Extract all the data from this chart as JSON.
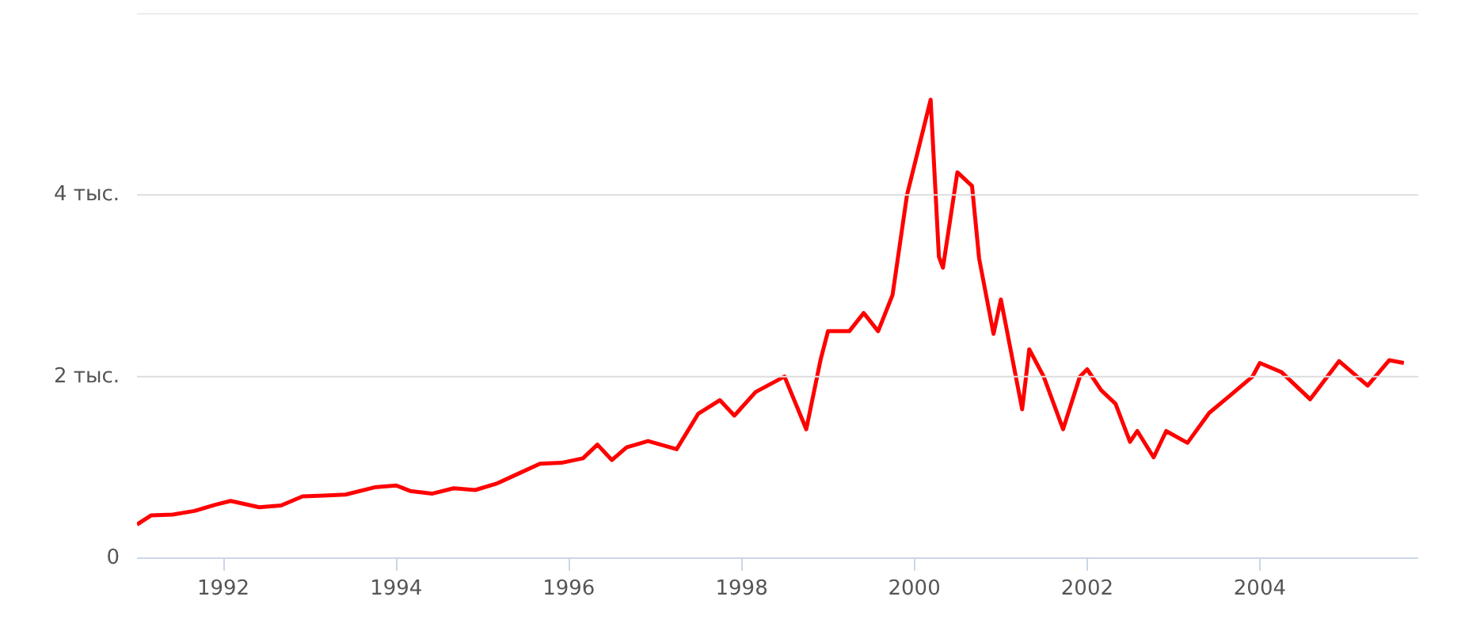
{
  "chart_data": {
    "type": "line",
    "x": [
      "1991-01",
      "1991-03",
      "1991-06",
      "1991-09",
      "1991-12",
      "1992-02",
      "1992-06",
      "1992-09",
      "1992-12",
      "1993-03",
      "1993-06",
      "1993-10",
      "1994-01",
      "1994-03",
      "1994-06",
      "1994-09",
      "1994-12",
      "1995-03",
      "1995-06",
      "1995-09",
      "1995-12",
      "1996-03",
      "1996-05",
      "1996-07",
      "1996-09",
      "1996-12",
      "1997-04",
      "1997-07",
      "1997-10",
      "1997-12",
      "1998-03",
      "1998-07",
      "1998-10",
      "1998-12",
      "1999-01",
      "1999-04",
      "1999-06",
      "1999-08",
      "1999-10",
      "1999-12",
      "2000-03-10",
      "2000-04-14",
      "2000-05",
      "2000-07",
      "2000-09",
      "2000-10",
      "2000-12",
      "2001-01",
      "2001-04",
      "2001-05",
      "2001-07",
      "2001-09-21",
      "2001-12",
      "2002-01",
      "2002-03",
      "2002-05",
      "2002-07",
      "2002-08",
      "2002-10-09",
      "2002-12",
      "2003-03",
      "2003-06",
      "2003-09",
      "2003-12",
      "2004-01",
      "2004-04",
      "2004-08",
      "2004-12",
      "2005-04",
      "2005-07",
      "2005-09"
    ],
    "series": [
      {
        "color": "#ff0000",
        "values": [
          0.37,
          0.47,
          0.48,
          0.52,
          0.59,
          0.63,
          0.56,
          0.58,
          0.68,
          0.69,
          0.7,
          0.78,
          0.8,
          0.74,
          0.71,
          0.77,
          0.75,
          0.82,
          0.93,
          1.04,
          1.05,
          1.1,
          1.25,
          1.08,
          1.22,
          1.29,
          1.2,
          1.59,
          1.74,
          1.57,
          1.83,
          2.0,
          1.42,
          2.19,
          2.5,
          2.5,
          2.7,
          2.5,
          2.9,
          4.0,
          5.05,
          3.32,
          3.2,
          4.25,
          4.1,
          3.3,
          2.47,
          2.85,
          1.64,
          2.3,
          2.0,
          1.42,
          2.0,
          2.08,
          1.85,
          1.7,
          1.28,
          1.4,
          1.11,
          1.4,
          1.27,
          1.6,
          1.8,
          2.0,
          2.15,
          2.05,
          1.75,
          2.17,
          1.9,
          2.18,
          2.15
        ]
      }
    ],
    "xlim": [
      "1991-01",
      "2005-11"
    ],
    "xticks": [
      "1992",
      "1994",
      "1996",
      "1998",
      "2000",
      "2002",
      "2004"
    ],
    "ylim": [
      0,
      6
    ],
    "yticks": [
      0,
      {
        "value": 2,
        "label": "2 тыс."
      },
      {
        "value": 4,
        "label": "4 тыс."
      },
      {
        "value": 6,
        "label": null
      }
    ],
    "grid": "y",
    "marker": "none",
    "line_style": "solid"
  }
}
